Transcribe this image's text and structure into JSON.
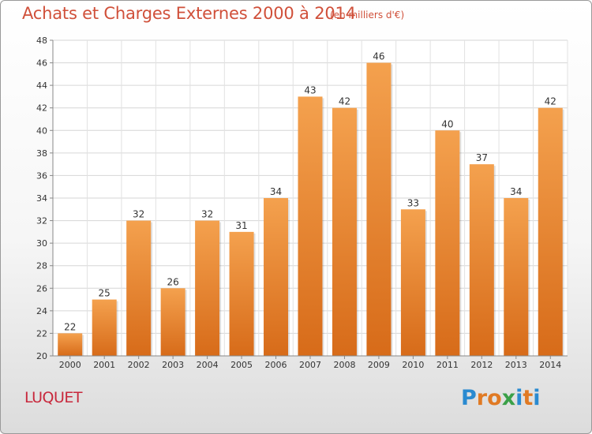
{
  "title": "Achats et Charges Externes 2000 à 2014",
  "subtitle": "(en milliers d'€)",
  "commune": "LUQUET",
  "brand": {
    "letters": [
      "P",
      "r",
      "o",
      "x",
      "i",
      "t",
      "i"
    ],
    "colors": [
      "#2a8ad0",
      "#e07a24",
      "#e07a24",
      "#3aa048",
      "#2a8ad0",
      "#e07a24",
      "#2a8ad0"
    ]
  },
  "colors": {
    "bar_top": "#f4a14e",
    "bar_bottom": "#d76b19",
    "text": "#d0503a",
    "commune": "#c8283c"
  },
  "chart_data": {
    "type": "bar",
    "categories": [
      "2000",
      "2001",
      "2002",
      "2003",
      "2004",
      "2005",
      "2006",
      "2007",
      "2008",
      "2009",
      "2010",
      "2011",
      "2012",
      "2013",
      "2014"
    ],
    "values": [
      22,
      25,
      32,
      26,
      32,
      31,
      34,
      43,
      42,
      46,
      33,
      40,
      37,
      34,
      42
    ],
    "title": "Achats et Charges Externes 2000 à 2014",
    "xlabel": "",
    "ylabel": "",
    "ylim": [
      20,
      48
    ],
    "yticks": [
      20,
      22,
      24,
      26,
      28,
      30,
      32,
      34,
      36,
      38,
      40,
      42,
      44,
      46,
      48
    ],
    "grid": true,
    "data_labels": true
  }
}
